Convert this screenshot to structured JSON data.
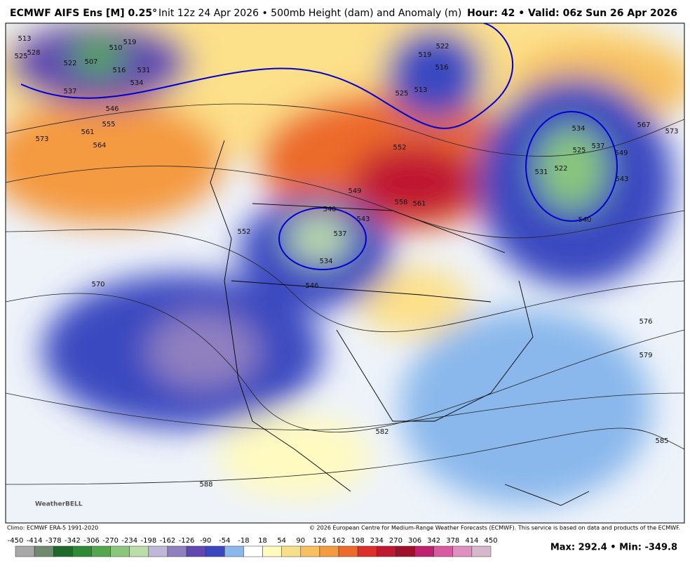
{
  "header": {
    "title": "ECMWF AIFS Ens [M] 0.25°",
    "subtitle": "Init 12z 24 Apr 2026 • 500mb Height (dam) and Anomaly (m)",
    "valid": "Hour: 42 • Valid: 06z Sun 26 Apr 2026"
  },
  "map": {
    "logo": "WeatherBELL",
    "contour_labels": [
      "513",
      "525",
      "528",
      "522",
      "507",
      "510",
      "516",
      "519",
      "531",
      "534",
      "537",
      "546",
      "555",
      "561",
      "573",
      "564",
      "570",
      "552",
      "540",
      "543",
      "537",
      "534",
      "546",
      "549",
      "558",
      "561",
      "552",
      "519",
      "522",
      "516",
      "513",
      "525",
      "525",
      "522",
      "531",
      "537",
      "534",
      "543",
      "549",
      "540",
      "567",
      "573",
      "576",
      "579",
      "585",
      "582",
      "588"
    ]
  },
  "footer": {
    "climo": "Climo: ECMWF ERA-5 1991-2020",
    "copyright": "© 2026 European Centre for Medium-Range Weather Forecasts (ECMWF). This service is based on data and products of the ECMWF."
  },
  "colorbar": {
    "ticks": [
      -450,
      -414,
      -378,
      -342,
      -306,
      -270,
      -234,
      -198,
      -162,
      -126,
      -90,
      -54,
      -18,
      18,
      54,
      90,
      126,
      162,
      198,
      234,
      270,
      306,
      342,
      378,
      414,
      450
    ],
    "colors": [
      "#a8a8a8",
      "#6f8a6f",
      "#1f6a2a",
      "#2f8a36",
      "#55a64f",
      "#8ac67c",
      "#bcdcaa",
      "#c0b8d8",
      "#9080c0",
      "#6048b0",
      "#3a48c0",
      "#8ab8ec",
      "#ffffff",
      "#fffac0",
      "#f8e08a",
      "#f8c060",
      "#f49a40",
      "#ec6a2a",
      "#dc3028",
      "#c01830",
      "#a0102a",
      "#c02070",
      "#d85aa0",
      "#e090c0",
      "#d6b8cc"
    ]
  },
  "stats": "Max: 292.4 • Min: -349.8"
}
